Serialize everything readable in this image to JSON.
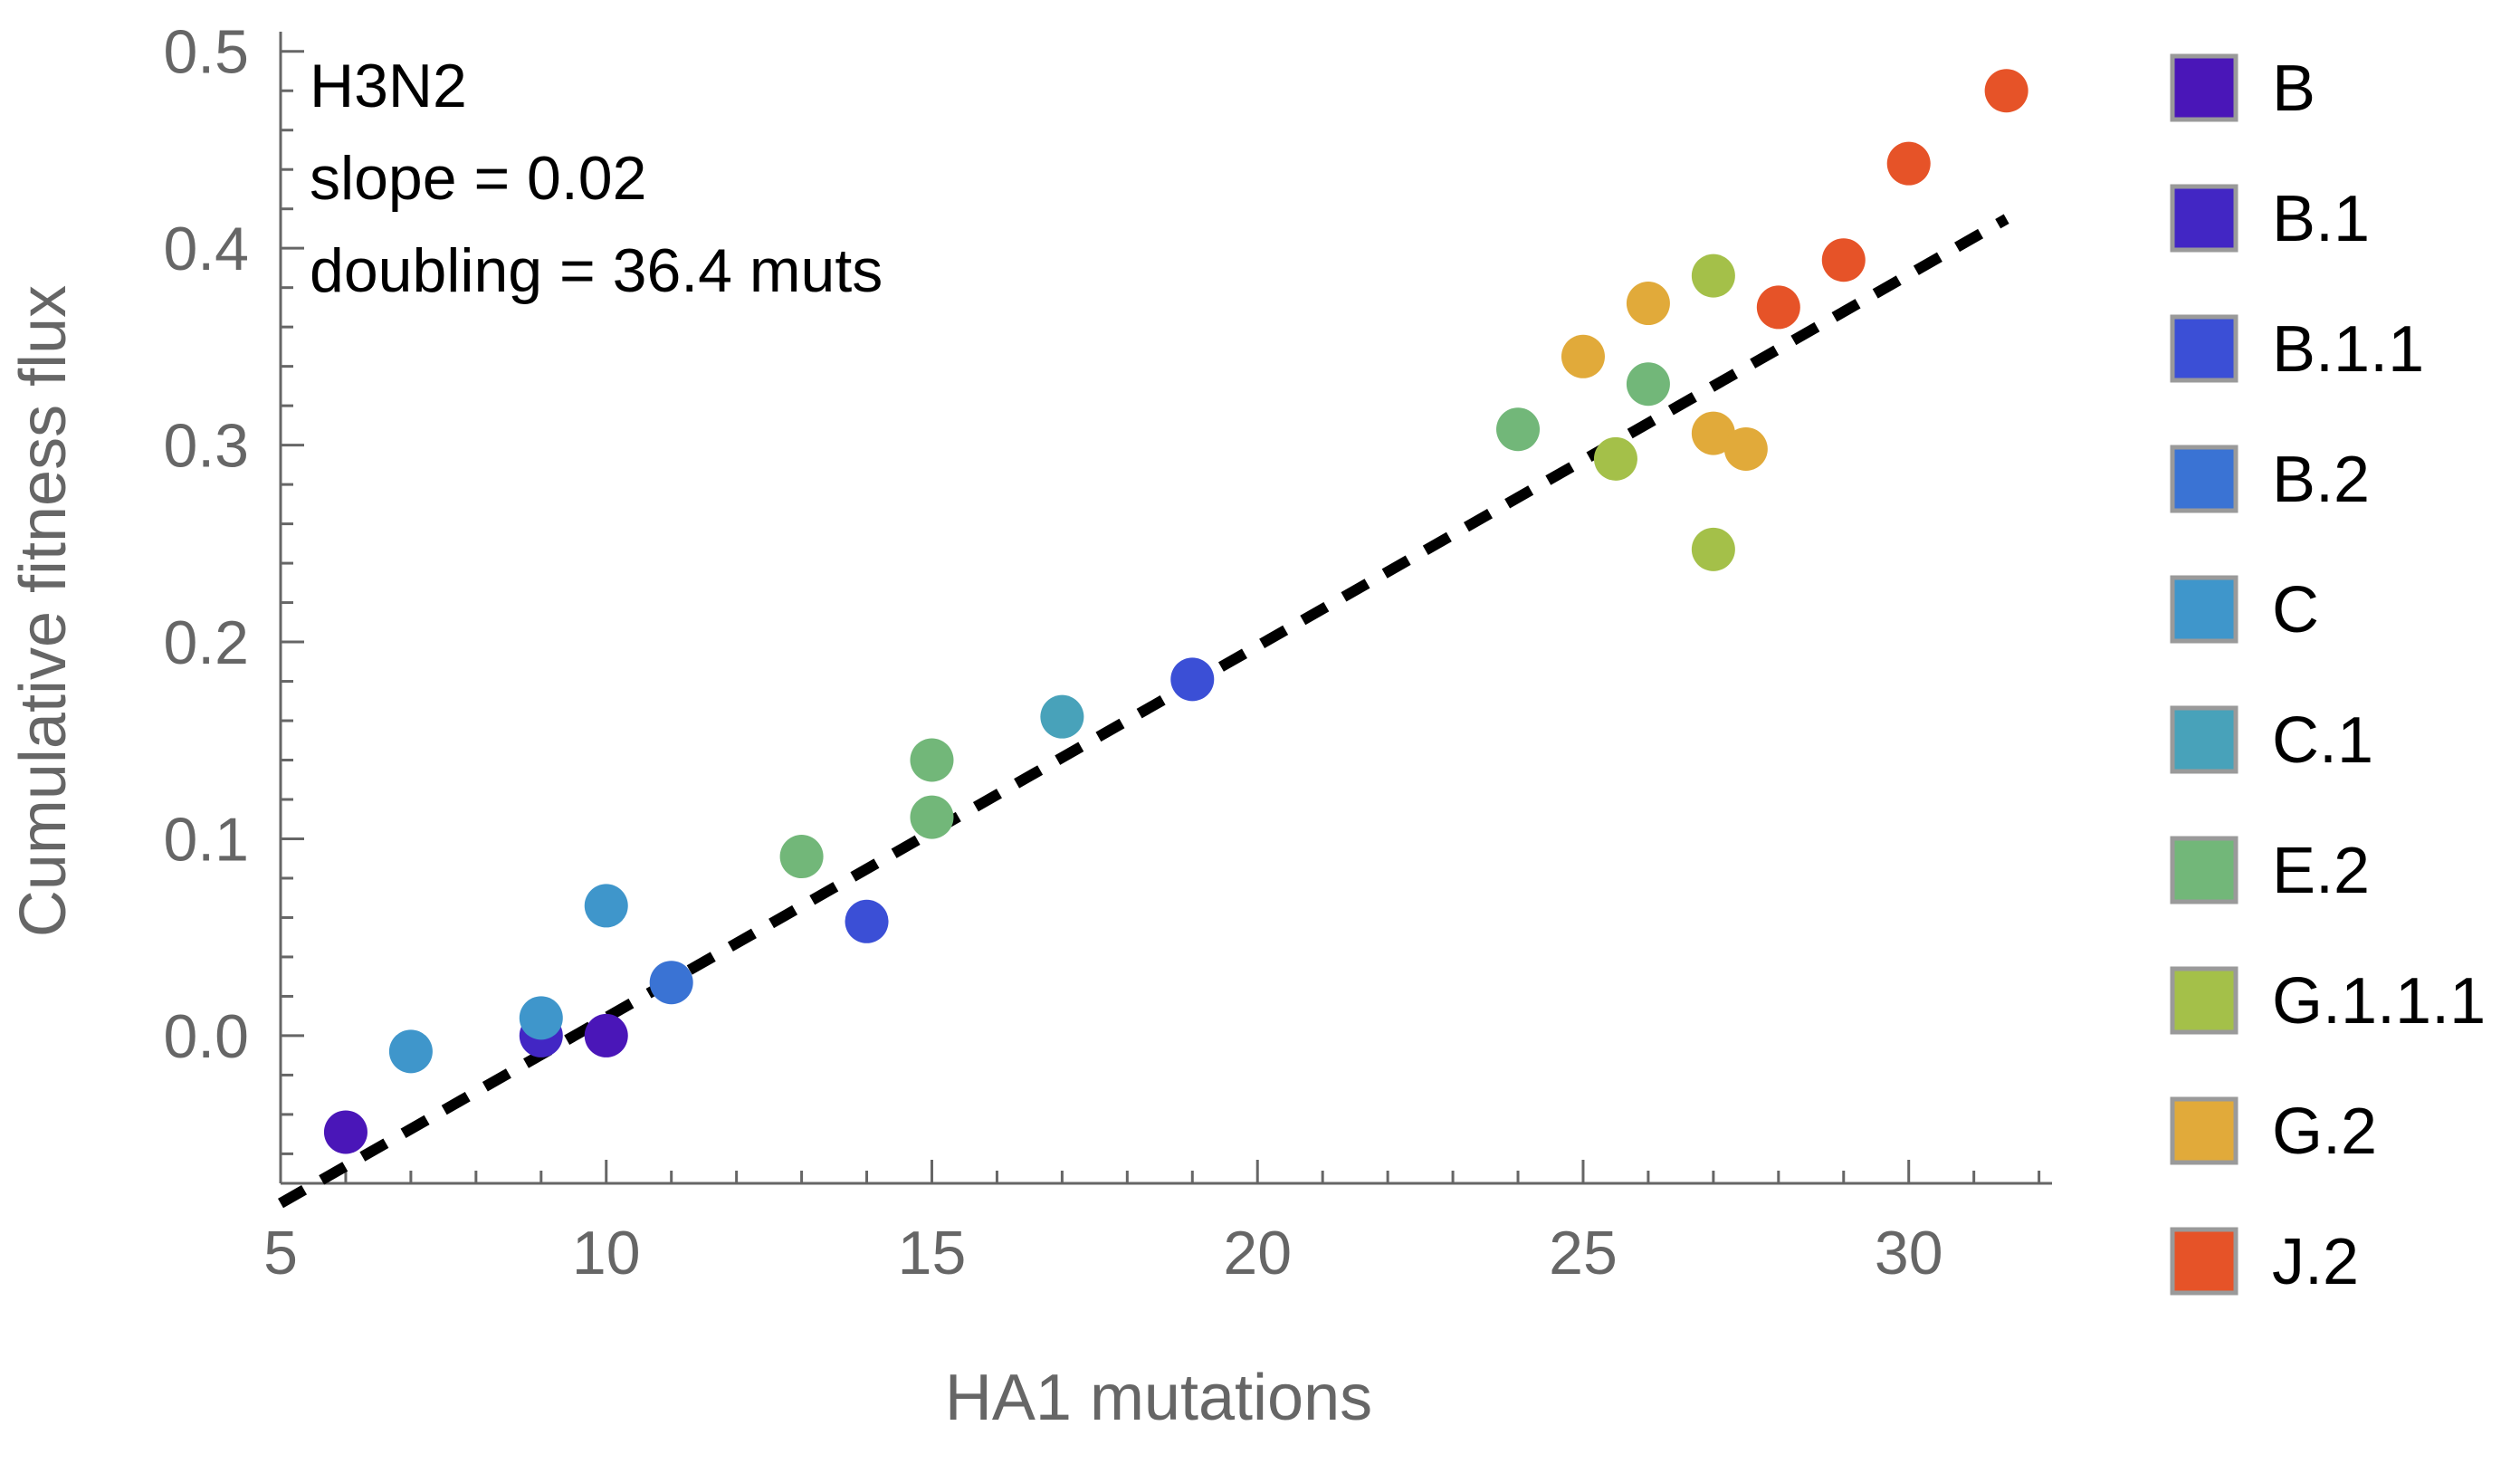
{
  "chart_data": {
    "type": "scatter",
    "xlabel": "HA1 mutations",
    "ylabel": "Cumulative fitness flux",
    "xlim": [
      5,
      32.2
    ],
    "ylim": [
      -0.075,
      0.51
    ],
    "x_ticks": [
      5,
      10,
      15,
      20,
      25,
      30
    ],
    "x_tick_labels": [
      "5",
      "10",
      "15",
      "20",
      "25",
      "30"
    ],
    "y_ticks": [
      0.0,
      0.1,
      0.2,
      0.3,
      0.4,
      0.5
    ],
    "y_tick_labels": [
      "0.0",
      "0.1",
      "0.2",
      "0.3",
      "0.4",
      "0.5"
    ],
    "grid": false,
    "legend_position": "right",
    "annotations": [
      "H3N2",
      "slope = 0.02",
      "doubling = 36.4 muts"
    ],
    "fit_line": {
      "style": "dashed",
      "color": "#000000",
      "slope": 0.01887,
      "intercept": -0.1795
    },
    "series": [
      {
        "name": "B",
        "color": "#4a16b8",
        "points": [
          [
            6,
            -0.049
          ],
          [
            10,
            0.0
          ]
        ]
      },
      {
        "name": "B.1",
        "color": "#4226c4",
        "points": [
          [
            9,
            0.0
          ]
        ]
      },
      {
        "name": "B.1.1",
        "color": "#3b4fd6",
        "points": [
          [
            14,
            0.058
          ],
          [
            19,
            0.181
          ]
        ]
      },
      {
        "name": "B.2",
        "color": "#3a73d4",
        "points": [
          [
            11,
            0.027
          ]
        ]
      },
      {
        "name": "C",
        "color": "#3f96cb",
        "points": [
          [
            7,
            -0.008
          ],
          [
            9,
            0.009
          ],
          [
            10,
            0.066
          ]
        ]
      },
      {
        "name": "C.1",
        "color": "#48a2ba",
        "points": [
          [
            17,
            0.162
          ]
        ]
      },
      {
        "name": "E.2",
        "color": "#72b779",
        "points": [
          [
            13,
            0.091
          ],
          [
            15,
            0.14
          ],
          [
            15,
            0.111
          ],
          [
            24,
            0.308
          ],
          [
            26,
            0.331
          ]
        ]
      },
      {
        "name": "G.1.1.1",
        "color": "#a4c049",
        "points": [
          [
            25.5,
            0.293
          ],
          [
            27,
            0.386
          ],
          [
            27,
            0.247
          ]
        ]
      },
      {
        "name": "G.2",
        "color": "#e1aa3a",
        "points": [
          [
            25,
            0.345
          ],
          [
            26,
            0.372
          ],
          [
            27,
            0.306
          ],
          [
            27.5,
            0.298
          ]
        ]
      },
      {
        "name": "J.2",
        "color": "#e65328",
        "points": [
          [
            28,
            0.37
          ],
          [
            29,
            0.394
          ],
          [
            30,
            0.443
          ],
          [
            31.5,
            0.48
          ]
        ]
      }
    ]
  }
}
